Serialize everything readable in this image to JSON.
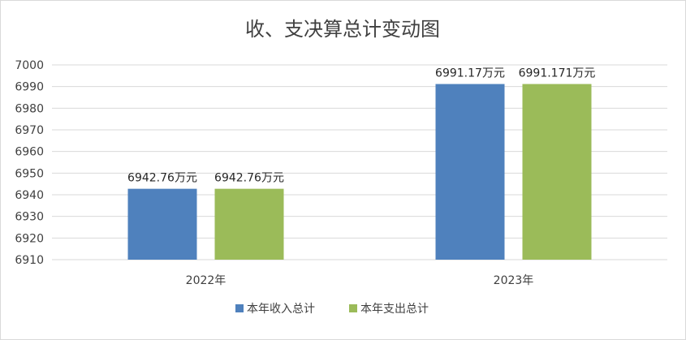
{
  "chart_data": {
    "type": "bar",
    "title": "收、支决算总计变动图",
    "categories": [
      "2022年",
      "2023年"
    ],
    "series": [
      {
        "name": "本年收入总计",
        "color": "#4f81bd",
        "values": [
          6942.76,
          6991.17
        ],
        "labels": [
          "6942.76万元",
          "6991.17万元"
        ]
      },
      {
        "name": "本年支出总计",
        "color": "#9bbb59",
        "values": [
          6942.76,
          6991.171
        ],
        "labels": [
          "6942.76万元",
          "6991.171万元"
        ]
      }
    ],
    "ylim": [
      6910,
      7000
    ],
    "yticks": [
      6910,
      6920,
      6930,
      6940,
      6950,
      6960,
      6970,
      6980,
      6990,
      7000
    ],
    "grid": true,
    "legend": "bottom",
    "xlabel": "",
    "ylabel": ""
  }
}
